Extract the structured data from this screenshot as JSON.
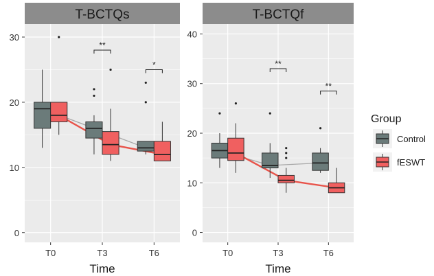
{
  "chart_data": [
    {
      "type": "box",
      "title": "T-BCTQs",
      "xlabel": "Time",
      "ylabel": "",
      "categories": [
        "T0",
        "T3",
        "T6"
      ],
      "ylim": [
        -1.5,
        32
      ],
      "yticks": [
        "0",
        "10",
        "20",
        "30"
      ],
      "grid": true,
      "series": [
        {
          "name": "Control",
          "color": "#6b7b7a",
          "line_color": "#a8a8a8",
          "boxes": [
            {
              "q1": 16,
              "median": 19,
              "q3": 20,
              "whisker_low": 13,
              "whisker_high": 25,
              "outliers": []
            },
            {
              "q1": 14.5,
              "median": 16,
              "q3": 17,
              "whisker_low": 12,
              "whisker_high": 18,
              "outliers": [
                21,
                22
              ]
            },
            {
              "q1": 12.5,
              "median": 13,
              "q3": 14,
              "whisker_low": 12,
              "whisker_high": 14,
              "outliers": [
                20,
                23
              ]
            }
          ],
          "means": [
            19,
            16,
            13
          ]
        },
        {
          "name": "fESWT",
          "color": "#f06060",
          "line_color": "#e8534a",
          "boxes": [
            {
              "q1": 17,
              "median": 18,
              "q3": 20,
              "whisker_low": 15,
              "whisker_high": 20,
              "outliers": [
                30
              ]
            },
            {
              "q1": 12,
              "median": 13.5,
              "q3": 15.5,
              "whisker_low": 11,
              "whisker_high": 19,
              "outliers": [
                25
              ]
            },
            {
              "q1": 11,
              "median": 12,
              "q3": 14,
              "whisker_low": 11,
              "whisker_high": 17,
              "outliers": []
            }
          ],
          "means": [
            18,
            13.5,
            12
          ]
        }
      ],
      "annotations": [
        {
          "category": "T3",
          "label": "**",
          "y": 28
        },
        {
          "category": "T6",
          "label": "*",
          "y": 25
        }
      ]
    },
    {
      "type": "box",
      "title": "T-BCTQf",
      "xlabel": "Time",
      "ylabel": "",
      "categories": [
        "T0",
        "T3",
        "T6"
      ],
      "ylim": [
        -2,
        42
      ],
      "yticks": [
        "0",
        "10",
        "20",
        "30",
        "40"
      ],
      "grid": true,
      "series": [
        {
          "name": "Control",
          "color": "#6b7b7a",
          "line_color": "#a8a8a8",
          "boxes": [
            {
              "q1": 15,
              "median": 16.5,
              "q3": 18,
              "whisker_low": 13,
              "whisker_high": 20,
              "outliers": [
                24
              ]
            },
            {
              "q1": 13,
              "median": 13.5,
              "q3": 16,
              "whisker_low": 11,
              "whisker_high": 18,
              "outliers": [
                24
              ]
            },
            {
              "q1": 12.5,
              "median": 14,
              "q3": 16,
              "whisker_low": 12,
              "whisker_high": 17,
              "outliers": [
                21
              ]
            }
          ],
          "means": [
            16.5,
            13.5,
            14
          ]
        },
        {
          "name": "fESWT",
          "color": "#f06060",
          "line_color": "#e8534a",
          "boxes": [
            {
              "q1": 14.5,
              "median": 16,
              "q3": 19,
              "whisker_low": 12,
              "whisker_high": 22,
              "outliers": [
                26
              ]
            },
            {
              "q1": 10,
              "median": 10.5,
              "q3": 11.5,
              "whisker_low": 8,
              "whisker_high": 13,
              "outliers": [
                15,
                16,
                17
              ]
            },
            {
              "q1": 8,
              "median": 9,
              "q3": 10,
              "whisker_low": 8,
              "whisker_high": 13,
              "outliers": []
            }
          ],
          "means": [
            16,
            10.5,
            9
          ]
        }
      ],
      "annotations": [
        {
          "category": "T3",
          "label": "**",
          "y": 33
        },
        {
          "category": "T6",
          "label": "**",
          "y": 28.5
        }
      ]
    }
  ],
  "legend": {
    "title": "Group",
    "placement": "right",
    "items": [
      {
        "label": "Control",
        "color": "#6b7b7a"
      },
      {
        "label": "fESWT",
        "color": "#f06060"
      }
    ]
  }
}
